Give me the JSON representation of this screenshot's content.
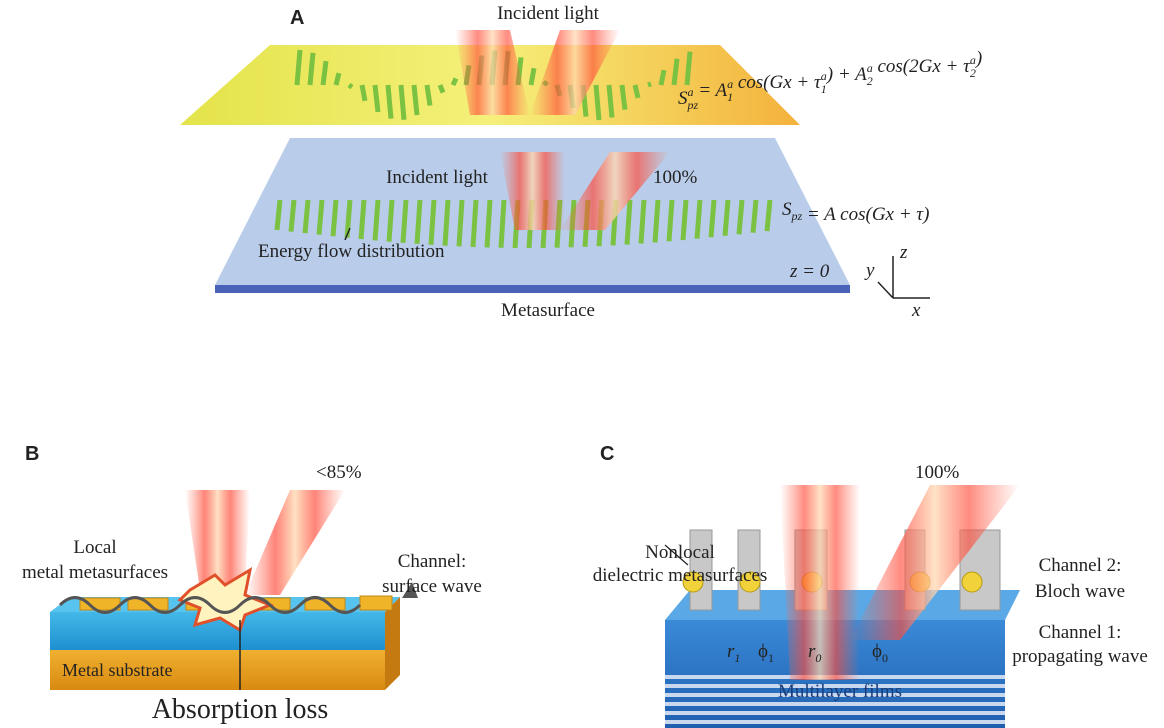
{
  "panel_a": {
    "label": "A",
    "incident_top": "Incident light",
    "equation_top": [
      {
        "base": "S",
        "sup": "a",
        "sub": "pz"
      },
      " = ",
      {
        "base": "A",
        "sup": "a",
        "sub": "1"
      },
      " cos(Gx + ",
      {
        "base": "τ",
        "sup": "a",
        "sub": "1"
      },
      ") + ",
      {
        "base": "A",
        "sup": "a",
        "sub": "2"
      },
      " cos(2Gx + ",
      {
        "base": "τ",
        "sup": "a",
        "sub": "2"
      },
      ")"
    ],
    "incident_bottom": "Incident light",
    "percent": "100%",
    "equation_bottom": [
      {
        "base": "S",
        "sub": "pz"
      },
      " = A cos(Gx + τ)"
    ],
    "energy_flow": "Energy flow distribution",
    "plane": "z = 0",
    "surface": "Metasurface",
    "axes": {
      "x": "x",
      "y": "y",
      "z": "z"
    }
  },
  "panel_b": {
    "label": "B",
    "percent": "<85%",
    "local": [
      "Local",
      "metal metasurfaces"
    ],
    "channel": [
      "Channel:",
      "surface wave"
    ],
    "substrate": "Metal substrate",
    "loss": "Absorption loss"
  },
  "panel_c": {
    "label": "C",
    "percent": "100%",
    "nonlocal": [
      "Nonlocal",
      "dielectric metasurfaces"
    ],
    "channel2": [
      "Channel 2:",
      "Bloch wave"
    ],
    "channel1": [
      "Channel 1:",
      "propagating wave"
    ],
    "films": "Multilayer films",
    "symbols": [
      {
        "base": "r",
        "sub": "1"
      },
      {
        "base": "ϕ",
        "sub": "1"
      },
      {
        "base": "r",
        "sub": "0"
      },
      {
        "base": "ϕ",
        "sub": "0"
      }
    ]
  }
}
